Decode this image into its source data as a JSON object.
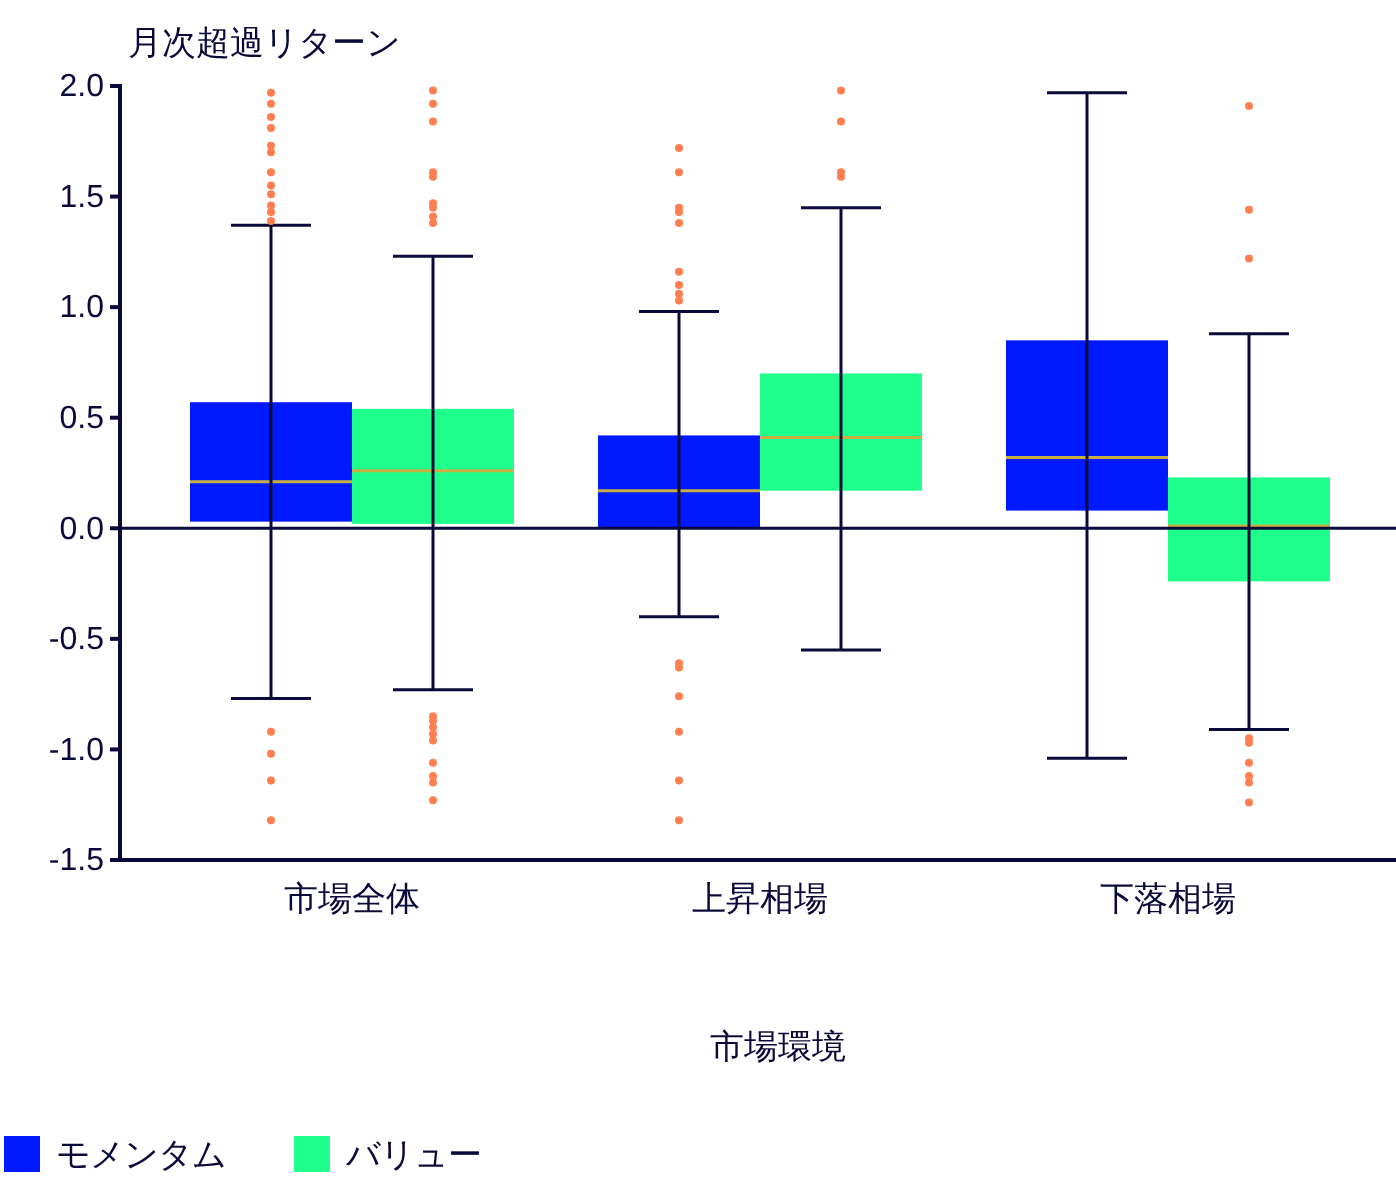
{
  "chart_data": {
    "type": "box",
    "ylabel": "月次超過リターン",
    "xlabel": "市場環境",
    "categories": [
      "市場全体",
      "上昇相場",
      "下落相場"
    ],
    "ylim": [
      -1.5,
      2.0
    ],
    "yticks": [
      {
        "value": -1.5,
        "label": "-1.5"
      },
      {
        "value": -1.0,
        "label": "-1.0"
      },
      {
        "value": -0.5,
        "label": "-0.5"
      },
      {
        "value": 0,
        "label": "0.0"
      },
      {
        "value": 0.5,
        "label": "0.5"
      },
      {
        "value": 1.0,
        "label": "1.0"
      },
      {
        "value": 1.5,
        "label": "1.5"
      },
      {
        "value": 2.0,
        "label": "2.0"
      }
    ],
    "grid": false,
    "legend": "bottom left",
    "ref_lines": [
      {
        "axis": "y",
        "value": 0,
        "color": "#0a0a3a"
      }
    ],
    "series": [
      {
        "name": "モメンタム",
        "color": "#0019ff",
        "boxes": [
          {
            "low": -0.77,
            "q1": 0.03,
            "median": 0.21,
            "q3": 0.57,
            "high": 1.37,
            "outliers": [
              1.97,
              1.92,
              1.86,
              1.81,
              1.73,
              1.7,
              1.61,
              1.55,
              1.51,
              1.46,
              1.43,
              1.39,
              -0.92,
              -1.02,
              -1.14,
              -1.32
            ]
          },
          {
            "low": -0.4,
            "q1": 0.0,
            "median": 0.17,
            "q3": 0.42,
            "high": 0.98,
            "outliers": [
              1.72,
              1.61,
              1.45,
              1.43,
              1.38,
              1.16,
              1.1,
              1.06,
              1.03,
              -0.61,
              -0.63,
              -0.76,
              -0.92,
              -1.14,
              -1.32
            ]
          },
          {
            "low": -1.04,
            "q1": 0.08,
            "median": 0.32,
            "q3": 0.85,
            "high": 1.97
          }
        ]
      },
      {
        "name": "バリュー",
        "color": "#1fff8c",
        "boxes": [
          {
            "low": -0.73,
            "q1": 0.02,
            "median": 0.26,
            "q3": 0.54,
            "high": 1.23,
            "outliers": [
              1.98,
              1.92,
              1.84,
              1.61,
              1.59,
              1.47,
              1.45,
              1.41,
              1.38,
              -0.85,
              -0.87,
              -0.9,
              -0.93,
              -0.96,
              -1.06,
              -1.12,
              -1.15,
              -1.23
            ]
          },
          {
            "low": -0.55,
            "q1": 0.17,
            "median": 0.41,
            "q3": 0.7,
            "high": 1.45,
            "outliers": [
              1.98,
              1.84,
              1.61,
              1.59
            ]
          },
          {
            "low": -0.91,
            "q1": -0.24,
            "median": 0.01,
            "q3": 0.23,
            "high": 0.88,
            "outliers": [
              1.91,
              1.44,
              1.22,
              -0.95,
              -0.97,
              -1.06,
              -1.12,
              -1.15,
              -1.24
            ]
          }
        ]
      }
    ]
  }
}
